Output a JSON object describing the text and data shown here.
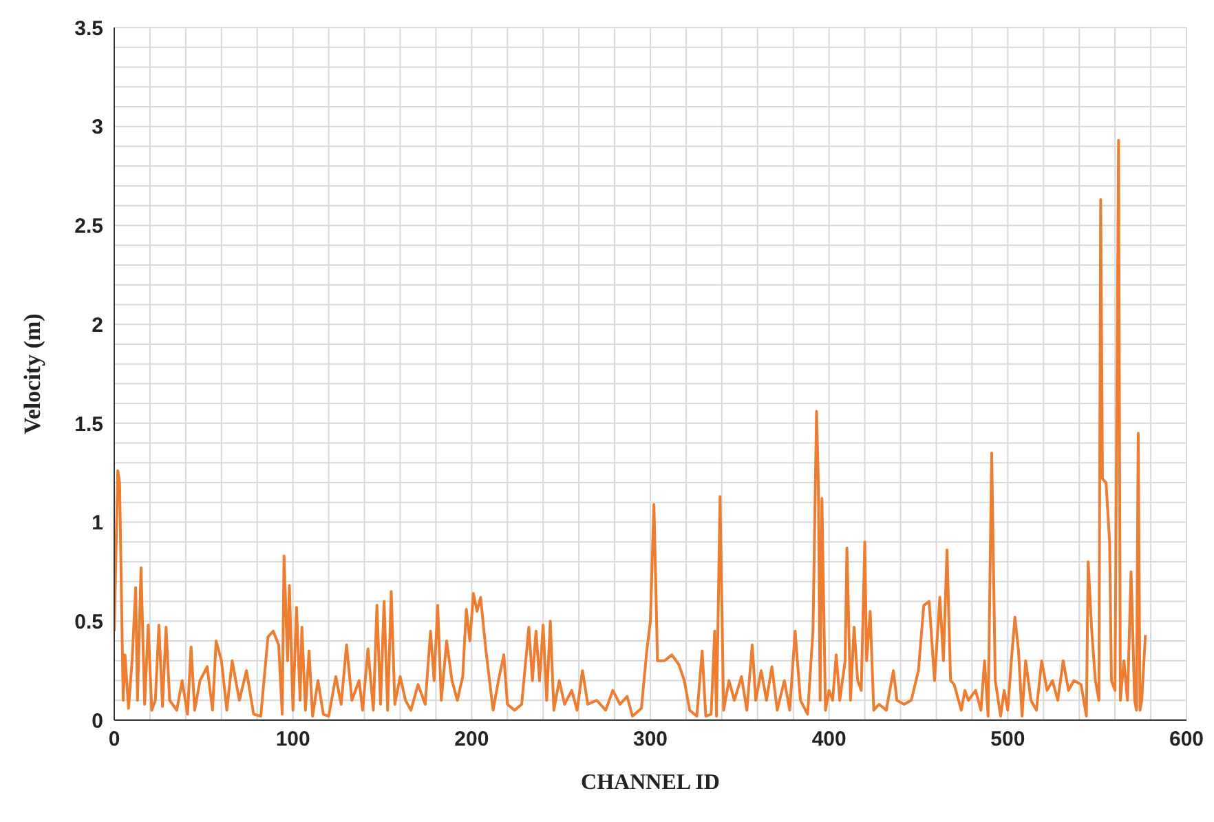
{
  "chart_data": {
    "type": "line",
    "xlabel": "CHANNEL ID",
    "ylabel": "Velocity (m)",
    "x": [
      0,
      2,
      3,
      5,
      6,
      8,
      10,
      12,
      13,
      15,
      17,
      19,
      21,
      23,
      25,
      27,
      29,
      31,
      35,
      38,
      41,
      43,
      45,
      48,
      52,
      55,
      57,
      60,
      63,
      66,
      70,
      74,
      78,
      82,
      86,
      89,
      92,
      94,
      95,
      97,
      98,
      100,
      102,
      104,
      105,
      107,
      109,
      111,
      114,
      117,
      120,
      124,
      127,
      130,
      133,
      137,
      139,
      142,
      145,
      147,
      149,
      151,
      153,
      155,
      157,
      160,
      163,
      166,
      170,
      174,
      177,
      179,
      181,
      183,
      186,
      189,
      192,
      195,
      197,
      199,
      201,
      203,
      205,
      208,
      212,
      215,
      218,
      220,
      224,
      228,
      232,
      234,
      236,
      238,
      240,
      242,
      244,
      246,
      249,
      252,
      256,
      259,
      262,
      265,
      270,
      275,
      279,
      283,
      287,
      290,
      295,
      298,
      300,
      302,
      304,
      308,
      312,
      316,
      319,
      322,
      326,
      329,
      331,
      334,
      336,
      337,
      339,
      341,
      344,
      347,
      351,
      354,
      357,
      359,
      362,
      365,
      368,
      371,
      375,
      378,
      381,
      384,
      388,
      391,
      393,
      394,
      395,
      396,
      398,
      400,
      402,
      404,
      406,
      409,
      410,
      412,
      414,
      416,
      418,
      420,
      421,
      423,
      425,
      428,
      432,
      436,
      438,
      442,
      446,
      450,
      453,
      456,
      459,
      462,
      464,
      466,
      468,
      470,
      474,
      476,
      478,
      482,
      485,
      487,
      489,
      491,
      493,
      496,
      498,
      500,
      502,
      504,
      506,
      508,
      510,
      513,
      516,
      519,
      522,
      525,
      528,
      531,
      534,
      537,
      541,
      544,
      545,
      547,
      549,
      551,
      552,
      553,
      555,
      557,
      558,
      560,
      562,
      563,
      565,
      567,
      569,
      571,
      572,
      573,
      574,
      575,
      577
    ],
    "series": [
      {
        "color": "#ed7d31",
        "values": [
          0.45,
          1.26,
          1.2,
          0.1,
          0.33,
          0.06,
          0.3,
          0.67,
          0.1,
          0.77,
          0.08,
          0.48,
          0.05,
          0.1,
          0.48,
          0.07,
          0.47,
          0.1,
          0.05,
          0.2,
          0.03,
          0.37,
          0.05,
          0.2,
          0.27,
          0.05,
          0.4,
          0.3,
          0.05,
          0.3,
          0.1,
          0.25,
          0.03,
          0.02,
          0.42,
          0.45,
          0.38,
          0.03,
          0.83,
          0.3,
          0.68,
          0.05,
          0.57,
          0.1,
          0.47,
          0.05,
          0.35,
          0.02,
          0.2,
          0.03,
          0.02,
          0.22,
          0.08,
          0.38,
          0.1,
          0.2,
          0.05,
          0.36,
          0.05,
          0.58,
          0.08,
          0.6,
          0.05,
          0.65,
          0.08,
          0.22,
          0.1,
          0.05,
          0.18,
          0.08,
          0.45,
          0.2,
          0.58,
          0.1,
          0.4,
          0.2,
          0.1,
          0.22,
          0.56,
          0.4,
          0.64,
          0.55,
          0.62,
          0.35,
          0.05,
          0.2,
          0.33,
          0.08,
          0.05,
          0.08,
          0.47,
          0.2,
          0.45,
          0.2,
          0.48,
          0.1,
          0.5,
          0.05,
          0.2,
          0.08,
          0.15,
          0.05,
          0.25,
          0.08,
          0.1,
          0.05,
          0.15,
          0.08,
          0.12,
          0.02,
          0.06,
          0.35,
          0.5,
          1.09,
          0.3,
          0.3,
          0.33,
          0.28,
          0.2,
          0.05,
          0.02,
          0.35,
          0.02,
          0.03,
          0.45,
          0.02,
          1.13,
          0.05,
          0.2,
          0.1,
          0.22,
          0.05,
          0.38,
          0.1,
          0.25,
          0.1,
          0.27,
          0.05,
          0.2,
          0.05,
          0.45,
          0.1,
          0.03,
          0.45,
          1.56,
          1.2,
          0.1,
          1.12,
          0.05,
          0.15,
          0.1,
          0.33,
          0.1,
          0.3,
          0.87,
          0.1,
          0.47,
          0.2,
          0.15,
          0.9,
          0.3,
          0.55,
          0.05,
          0.08,
          0.05,
          0.25,
          0.1,
          0.08,
          0.1,
          0.25,
          0.58,
          0.6,
          0.2,
          0.62,
          0.3,
          0.86,
          0.2,
          0.18,
          0.05,
          0.15,
          0.1,
          0.15,
          0.05,
          0.3,
          0.02,
          1.35,
          0.2,
          0.02,
          0.15,
          0.05,
          0.3,
          0.52,
          0.35,
          0.02,
          0.3,
          0.1,
          0.05,
          0.3,
          0.15,
          0.2,
          0.1,
          0.3,
          0.15,
          0.2,
          0.18,
          0.02,
          0.8,
          0.45,
          0.2,
          0.1,
          2.63,
          1.22,
          1.2,
          0.9,
          0.2,
          0.15,
          2.93,
          0.1,
          0.3,
          0.1,
          0.75,
          0.1,
          0.05,
          1.45,
          0.05,
          0.1,
          0.43
        ]
      }
    ],
    "xlim": [
      0,
      600
    ],
    "xticks": [
      0,
      {
        "value": 20,
        "label": null
      },
      {
        "value": 40,
        "label": null
      },
      {
        "value": 60,
        "label": null
      },
      {
        "value": 80,
        "label": null
      },
      100,
      {
        "value": 120,
        "label": null
      },
      {
        "value": 140,
        "label": null
      },
      {
        "value": 160,
        "label": null
      },
      {
        "value": 180,
        "label": null
      },
      200,
      {
        "value": 220,
        "label": null
      },
      {
        "value": 240,
        "label": null
      },
      {
        "value": 260,
        "label": null
      },
      {
        "value": 280,
        "label": null
      },
      300,
      {
        "value": 320,
        "label": null
      },
      {
        "value": 340,
        "label": null
      },
      {
        "value": 360,
        "label": null
      },
      {
        "value": 380,
        "label": null
      },
      400,
      {
        "value": 420,
        "label": null
      },
      {
        "value": 440,
        "label": null
      },
      {
        "value": 460,
        "label": null
      },
      {
        "value": 480,
        "label": null
      },
      500,
      {
        "value": 520,
        "label": null
      },
      {
        "value": 540,
        "label": null
      },
      {
        "value": 560,
        "label": null
      },
      {
        "value": 580,
        "label": null
      },
      600
    ],
    "ylim": [
      0,
      3.5
    ],
    "yticks": [
      0,
      {
        "value": 0.1,
        "label": null
      },
      {
        "value": 0.2,
        "label": null
      },
      {
        "value": 0.3,
        "label": null
      },
      {
        "value": 0.4,
        "label": null
      },
      0.5,
      {
        "value": 0.6,
        "label": null
      },
      {
        "value": 0.7,
        "label": null
      },
      {
        "value": 0.8,
        "label": null
      },
      {
        "value": 0.9,
        "label": null
      },
      1,
      {
        "value": 1.1,
        "label": null
      },
      {
        "value": 1.2,
        "label": null
      },
      {
        "value": 1.3,
        "label": null
      },
      {
        "value": 1.4,
        "label": null
      },
      1.5,
      {
        "value": 1.6,
        "label": null
      },
      {
        "value": 1.7,
        "label": null
      },
      {
        "value": 1.8,
        "label": null
      },
      {
        "value": 1.9,
        "label": null
      },
      2,
      {
        "value": 2.1,
        "label": null
      },
      {
        "value": 2.2,
        "label": null
      },
      {
        "value": 2.3,
        "label": null
      },
      {
        "value": 2.4,
        "label": null
      },
      2.5,
      {
        "value": 2.6,
        "label": null
      },
      {
        "value": 2.7,
        "label": null
      },
      {
        "value": 2.8,
        "label": null
      },
      {
        "value": 2.9,
        "label": null
      },
      3,
      {
        "value": 3.1,
        "label": null
      },
      {
        "value": 3.2,
        "label": null
      },
      {
        "value": 3.3,
        "label": null
      },
      {
        "value": 3.4,
        "label": null
      },
      3.5
    ],
    "grid": true,
    "marker": "none",
    "line_style": "solid"
  }
}
